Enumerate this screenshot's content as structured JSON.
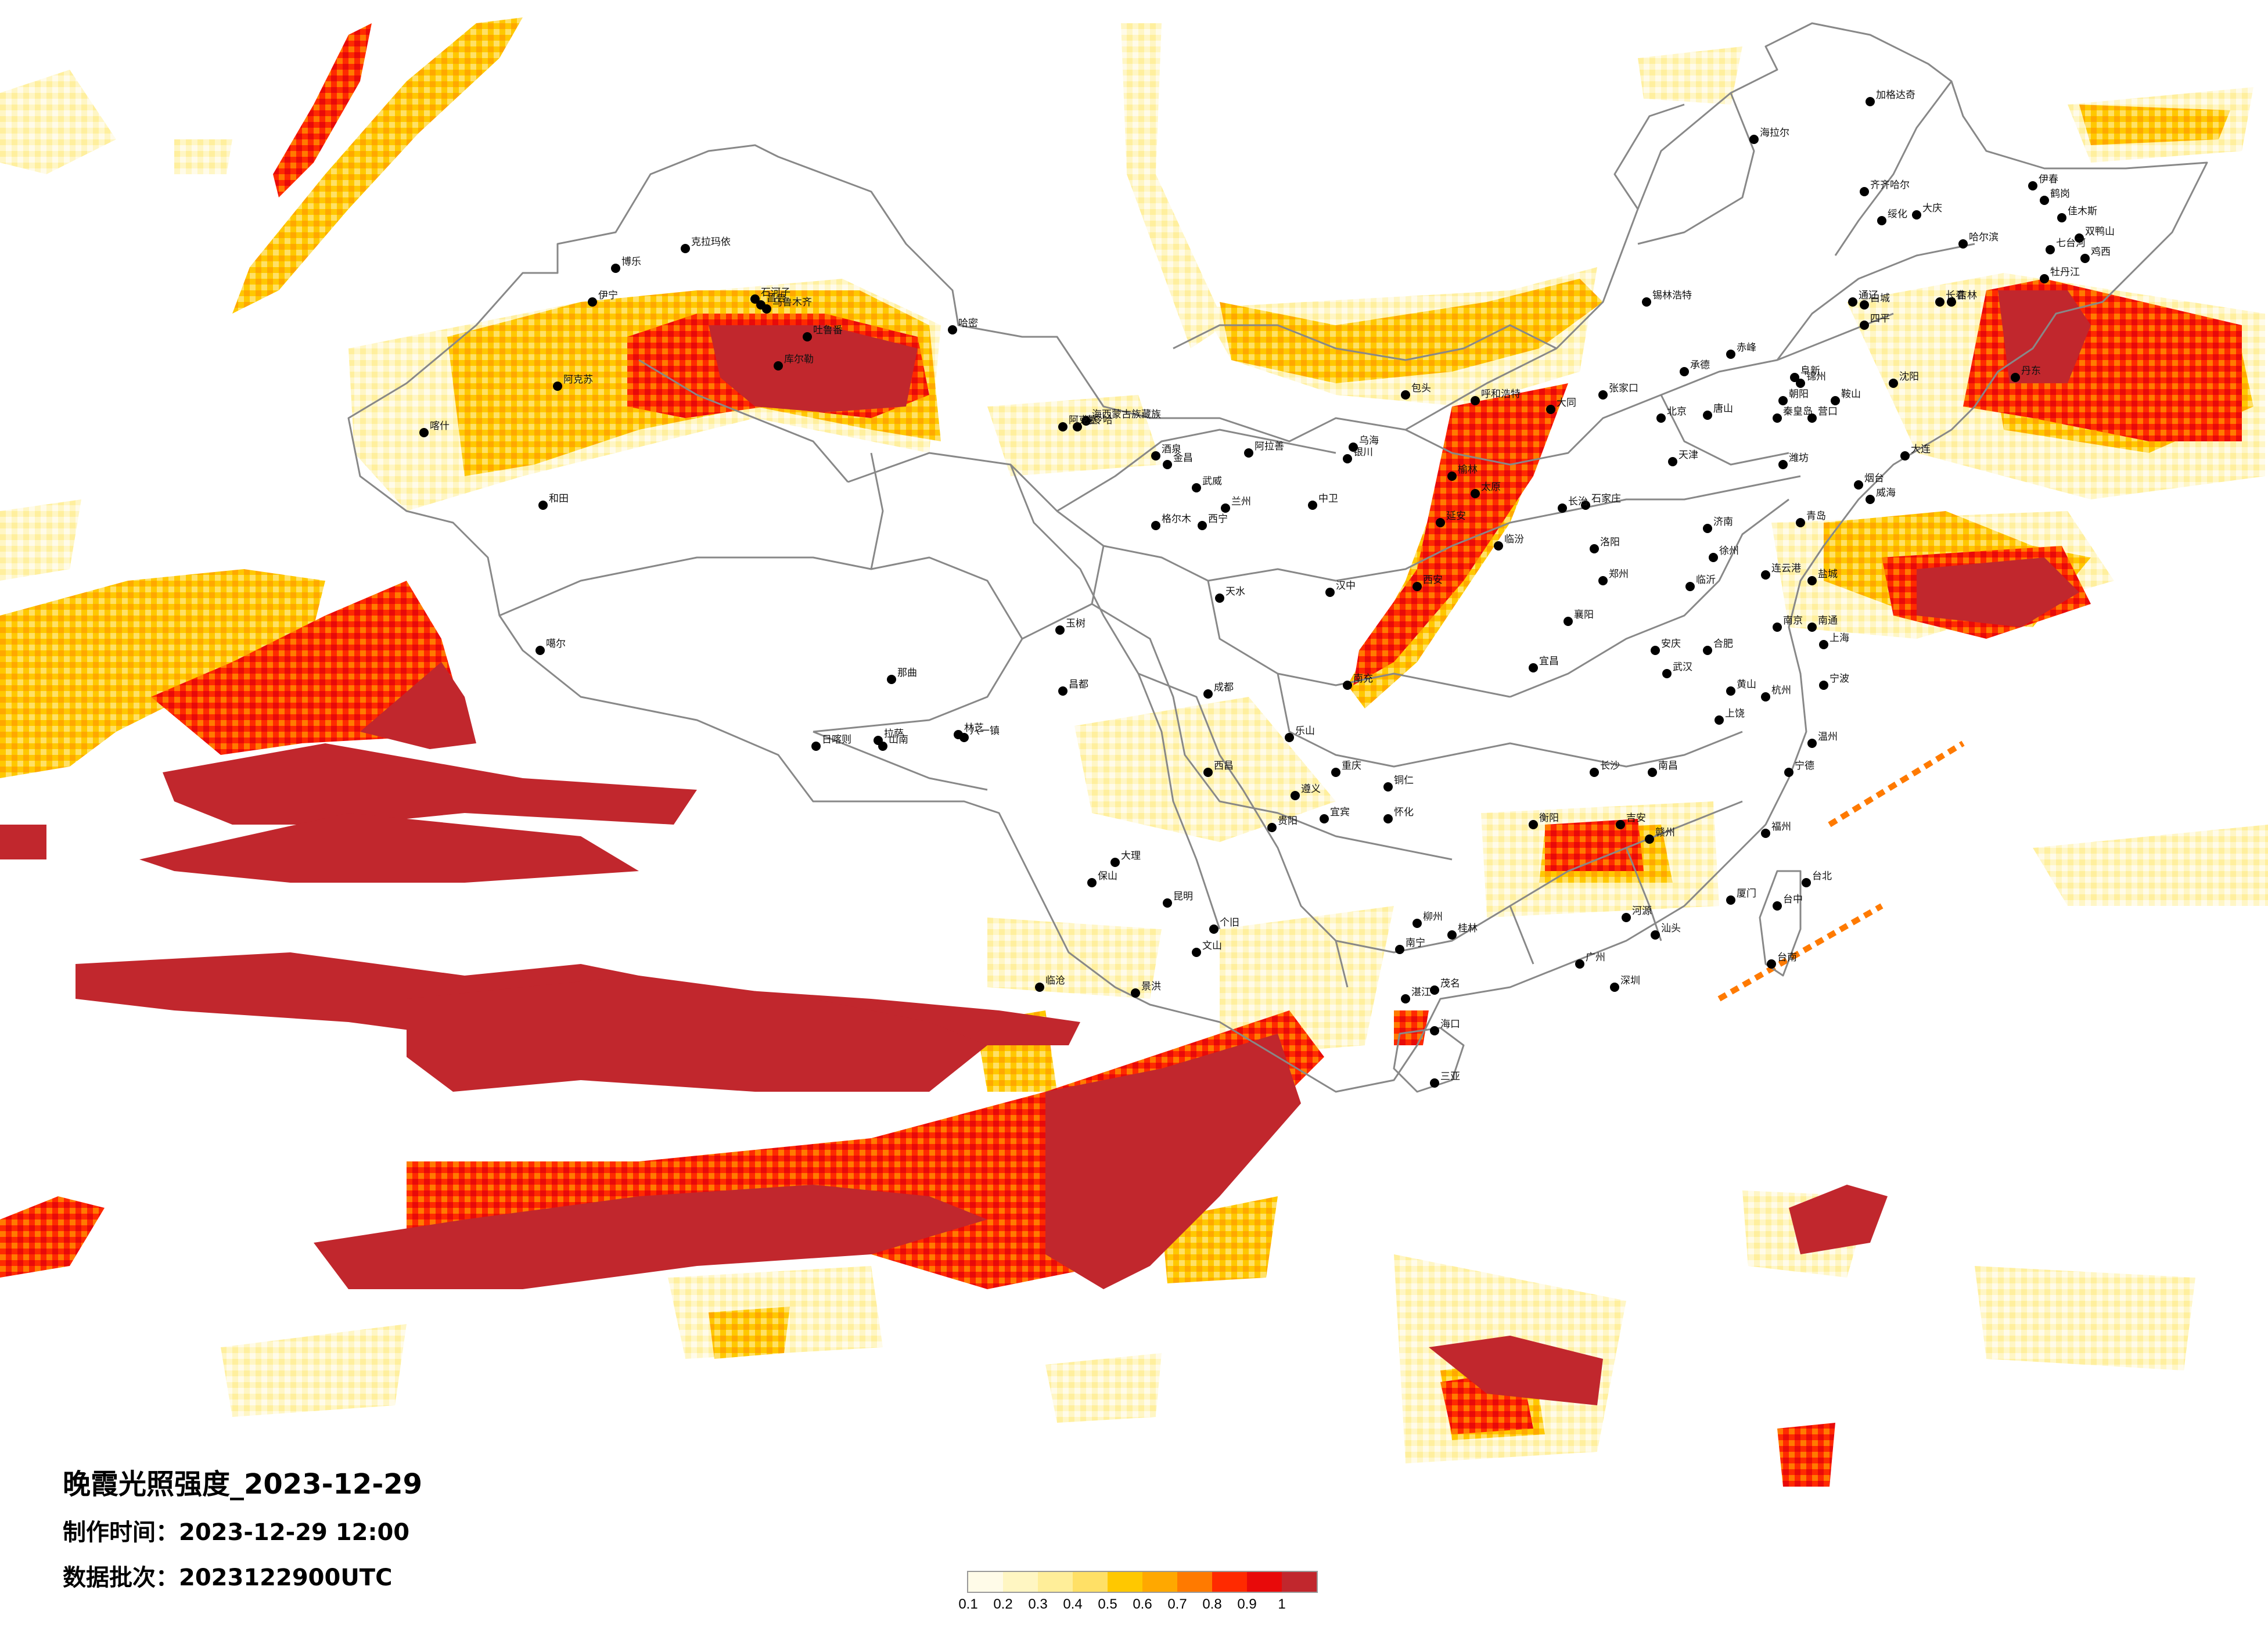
{
  "title": {
    "main": "晚霞光照强度_2023-12-29",
    "made_label": "制作时间：",
    "made_value": "2023-12-29 12:00",
    "batch_label": "数据批次：",
    "batch_value": "2023122900UTC"
  },
  "legend": {
    "ticks": [
      "0.1",
      "0.2",
      "0.3",
      "0.4",
      "0.5",
      "0.6",
      "0.7",
      "0.8",
      "0.9",
      "1"
    ],
    "colors": [
      "#fffbe8",
      "#fff6c2",
      "#ffee99",
      "#ffe066",
      "#ffc800",
      "#ffa800",
      "#ff7a00",
      "#ff2a00",
      "#e80a0a",
      "#c1272d"
    ]
  },
  "cities": [
    {
      "name": "伊宁"
    },
    {
      "name": "博乐"
    },
    {
      "name": "克拉玛依"
    },
    {
      "name": "石河子"
    },
    {
      "name": "昌吉"
    },
    {
      "name": "乌鲁木齐"
    },
    {
      "name": "吐鲁番"
    },
    {
      "name": "哈密"
    },
    {
      "name": "库尔勒"
    },
    {
      "name": "阿克苏"
    },
    {
      "name": "喀什"
    },
    {
      "name": "和田"
    },
    {
      "name": "噶尔"
    },
    {
      "name": "日喀则"
    },
    {
      "name": "拉萨"
    },
    {
      "name": "山南"
    },
    {
      "name": "林芝"
    },
    {
      "name": "八一镇"
    },
    {
      "name": "那曲"
    },
    {
      "name": "昌都"
    },
    {
      "name": "玉树"
    },
    {
      "name": "格尔木"
    },
    {
      "name": "德令哈"
    },
    {
      "name": "海西蒙古族藏族"
    },
    {
      "name": "西宁"
    },
    {
      "name": "兰州"
    },
    {
      "name": "酒泉"
    },
    {
      "name": "金昌"
    },
    {
      "name": "武威"
    },
    {
      "name": "银川"
    },
    {
      "name": "中卫"
    },
    {
      "name": "乌海"
    },
    {
      "name": "包头"
    },
    {
      "name": "呼和浩特"
    },
    {
      "name": "海拉尔"
    },
    {
      "name": "加格达奇"
    },
    {
      "name": "齐齐哈尔"
    },
    {
      "name": "大庆"
    },
    {
      "name": "哈尔滨"
    },
    {
      "name": "伊春"
    },
    {
      "name": "鹤岗"
    },
    {
      "name": "佳木斯"
    },
    {
      "name": "双鸭山"
    },
    {
      "name": "鸡西"
    },
    {
      "name": "牡丹江"
    },
    {
      "name": "长春"
    },
    {
      "name": "吉林"
    },
    {
      "name": "四平"
    },
    {
      "name": "沈阳"
    },
    {
      "name": "大连"
    },
    {
      "name": "锡林浩特"
    },
    {
      "name": "赤峰"
    },
    {
      "name": "北京"
    },
    {
      "name": "天津"
    },
    {
      "name": "石家庄"
    },
    {
      "name": "太原"
    },
    {
      "name": "济南"
    },
    {
      "name": "青岛"
    },
    {
      "name": "郑州"
    },
    {
      "name": "西安"
    },
    {
      "name": "延安"
    },
    {
      "name": "榆林"
    },
    {
      "name": "武汉"
    },
    {
      "name": "长沙"
    },
    {
      "name": "南昌"
    },
    {
      "name": "合肥"
    },
    {
      "name": "南京"
    },
    {
      "name": "上海"
    },
    {
      "name": "杭州"
    },
    {
      "name": "福州"
    },
    {
      "name": "厦门"
    },
    {
      "name": "广州"
    },
    {
      "name": "深圳"
    },
    {
      "name": "南宁"
    },
    {
      "name": "海口"
    },
    {
      "name": "三亚"
    },
    {
      "name": "台北"
    },
    {
      "name": "台中"
    },
    {
      "name": "台南"
    },
    {
      "name": "昆明"
    },
    {
      "name": "贵阳"
    },
    {
      "name": "成都"
    },
    {
      "name": "重庆"
    },
    {
      "name": "大理"
    },
    {
      "name": "保山"
    },
    {
      "name": "西昌"
    },
    {
      "name": "遵义"
    },
    {
      "name": "桂林"
    },
    {
      "name": "柳州"
    },
    {
      "name": "赣州"
    },
    {
      "name": "宜昌"
    },
    {
      "name": "襄阳"
    },
    {
      "name": "洛阳"
    },
    {
      "name": "临汾"
    },
    {
      "name": "汉中"
    },
    {
      "name": "天水"
    },
    {
      "name": "长治"
    },
    {
      "name": "宁德"
    },
    {
      "name": "温州"
    },
    {
      "name": "宁波"
    },
    {
      "name": "湛江"
    },
    {
      "name": "茂名"
    },
    {
      "name": "汕头"
    },
    {
      "name": "河源"
    },
    {
      "name": "南充"
    },
    {
      "name": "乐山"
    },
    {
      "name": "宜宾"
    },
    {
      "name": "张家口"
    },
    {
      "name": "大同"
    },
    {
      "name": "唐山"
    },
    {
      "name": "丹东"
    },
    {
      "name": "通辽"
    },
    {
      "name": "白城"
    },
    {
      "name": "绥化"
    },
    {
      "name": "七台河"
    },
    {
      "name": "阿拉善"
    },
    {
      "name": "阿克塞"
    },
    {
      "name": "临沧"
    },
    {
      "name": "文山"
    },
    {
      "name": "个旧"
    },
    {
      "name": "景洪"
    },
    {
      "name": "铜仁"
    },
    {
      "name": "怀化"
    },
    {
      "name": "衡阳"
    },
    {
      "name": "吉安"
    },
    {
      "name": "上饶"
    },
    {
      "name": "黄山"
    },
    {
      "name": "安庆"
    },
    {
      "name": "徐州"
    },
    {
      "name": "临沂"
    },
    {
      "name": "连云港"
    },
    {
      "name": "盐城"
    },
    {
      "name": "南通"
    },
    {
      "name": "潍坊"
    },
    {
      "name": "烟台"
    },
    {
      "name": "威海"
    },
    {
      "name": "承德"
    },
    {
      "name": "秦皇岛"
    },
    {
      "name": "锦州"
    },
    {
      "name": "营口"
    },
    {
      "name": "鞍山"
    },
    {
      "name": "阜新"
    },
    {
      "name": "朝阳"
    }
  ]
}
